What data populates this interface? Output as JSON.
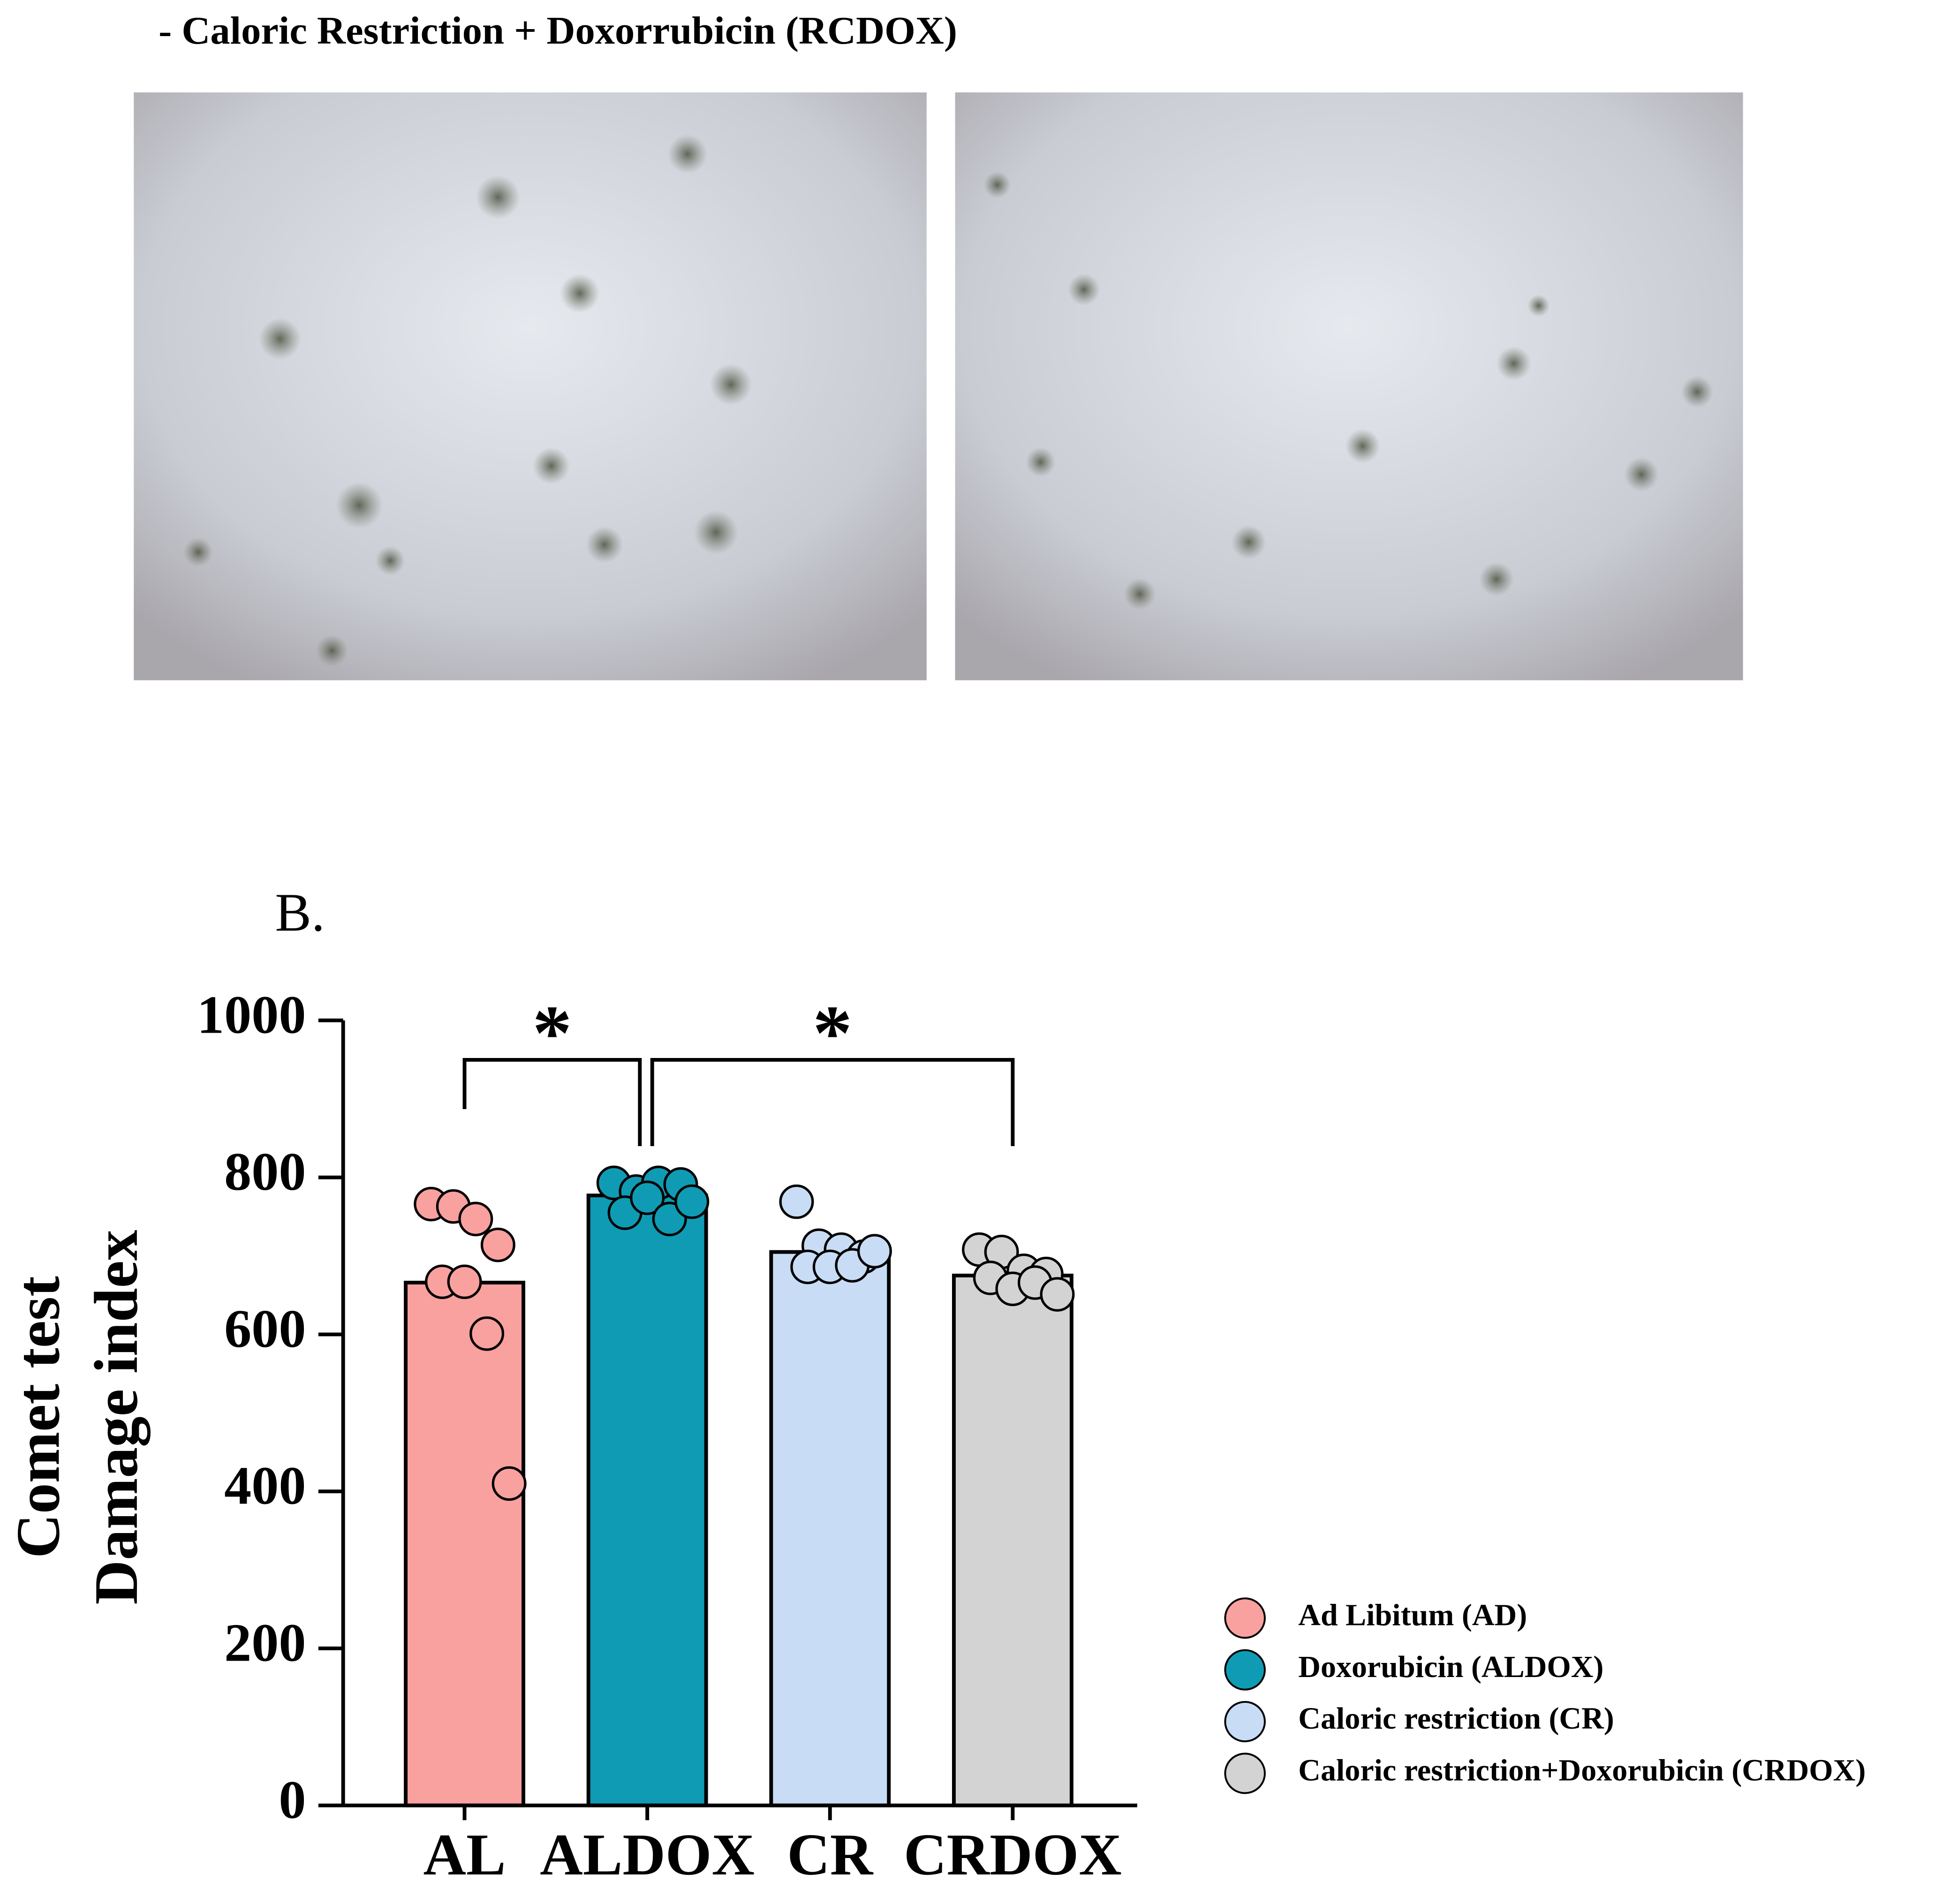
{
  "header": {
    "caption": "- Caloric Restriction +  Doxorrubicin  (RCDOX)"
  },
  "chart_data": {
    "type": "bar",
    "panel_label": "B.",
    "ylabel": [
      "Comet test",
      "Damage index"
    ],
    "categories": [
      "AL",
      "ALDOX",
      "CR",
      "CRDOX"
    ],
    "values": [
      666,
      777,
      705,
      675
    ],
    "colors": [
      "#f9a19f",
      "#109bb4",
      "#c8dcf5",
      "#d3d3d3"
    ],
    "legend": [
      "Ad Libitum (AD)",
      "Doxorubicin (ALDOX)",
      "Caloric restriction (CR)",
      "Caloric restriction+Doxorubicin (CRDOX)"
    ],
    "points": [
      [
        766,
        763,
        747,
        714,
        667,
        667,
        601,
        410
      ],
      [
        793,
        782,
        793,
        791,
        755,
        774,
        747,
        769
      ],
      [
        769,
        713,
        708,
        699,
        686,
        686,
        688,
        706
      ],
      [
        708,
        705,
        681,
        677,
        672,
        658,
        666,
        651
      ]
    ],
    "annotations": [
      {
        "text": "*",
        "from": 0,
        "to": 1
      },
      {
        "text": "*",
        "from": 1,
        "to": 3
      }
    ],
    "ylim": [
      0,
      1000
    ],
    "yticks": [
      0,
      200,
      400,
      600,
      800,
      1000
    ]
  }
}
